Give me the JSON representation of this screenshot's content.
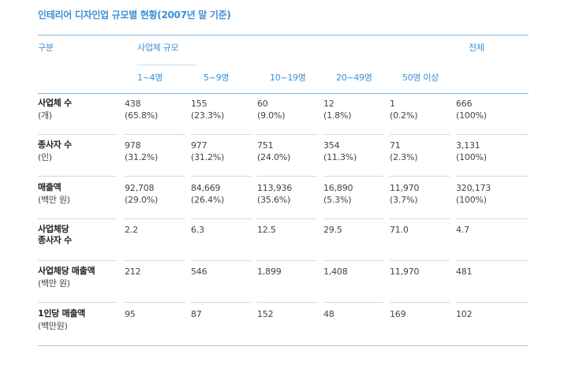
{
  "title": "인테리어 디자인업 규모별 현황(2007년 말 기준)",
  "header": {
    "category": "구분",
    "size_group": "사업체 규모",
    "total": "전체",
    "sizes": [
      "1~4명",
      "5~9명",
      "10~19명",
      "20~49명",
      "50명 이상"
    ]
  },
  "rows": [
    {
      "label": "사업체 수",
      "unit": "(개)",
      "cells": [
        {
          "value": "438",
          "pct": "(65.8%)"
        },
        {
          "value": "155",
          "pct": "(23.3%)"
        },
        {
          "value": "60",
          "pct": "(9.0%)"
        },
        {
          "value": "12",
          "pct": "(1.8%)"
        },
        {
          "value": "1",
          "pct": "(0.2%)"
        },
        {
          "value": "666",
          "pct": "(100%)"
        }
      ]
    },
    {
      "label": "종사자 수",
      "unit": "(인)",
      "cells": [
        {
          "value": "978",
          "pct": "(31.2%)"
        },
        {
          "value": "977",
          "pct": "(31.2%)"
        },
        {
          "value": "751",
          "pct": "(24.0%)"
        },
        {
          "value": "354",
          "pct": "(11.3%)"
        },
        {
          "value": "71",
          "pct": "(2.3%)"
        },
        {
          "value": "3,131",
          "pct": "(100%)"
        }
      ]
    },
    {
      "label": "매출액",
      "unit": "(백만 원)",
      "cells": [
        {
          "value": "92,708",
          "pct": "(29.0%)"
        },
        {
          "value": "84,669",
          "pct": "(26.4%)"
        },
        {
          "value": "113,936",
          "pct": "(35.6%)"
        },
        {
          "value": "16,890",
          "pct": "(5.3%)"
        },
        {
          "value": "11,970",
          "pct": "(3.7%)"
        },
        {
          "value": "320,173",
          "pct": "(100%)"
        }
      ]
    },
    {
      "label": "사업체당\n종사자 수",
      "unit": "",
      "cells": [
        {
          "value": "2.2",
          "pct": ""
        },
        {
          "value": "6.3",
          "pct": ""
        },
        {
          "value": "12.5",
          "pct": ""
        },
        {
          "value": "29.5",
          "pct": ""
        },
        {
          "value": "71.0",
          "pct": ""
        },
        {
          "value": "4.7",
          "pct": ""
        }
      ]
    },
    {
      "label": "사업체당 매출액",
      "unit": "(백만 원)",
      "cells": [
        {
          "value": "212",
          "pct": ""
        },
        {
          "value": "546",
          "pct": ""
        },
        {
          "value": "1,899",
          "pct": ""
        },
        {
          "value": "1,408",
          "pct": ""
        },
        {
          "value": "11,970",
          "pct": ""
        },
        {
          "value": "481",
          "pct": ""
        }
      ]
    },
    {
      "label": "1인당 매출액",
      "unit": "(백만원)",
      "cells": [
        {
          "value": "95",
          "pct": ""
        },
        {
          "value": "87",
          "pct": ""
        },
        {
          "value": "152",
          "pct": ""
        },
        {
          "value": "48",
          "pct": ""
        },
        {
          "value": "169",
          "pct": ""
        },
        {
          "value": "102",
          "pct": ""
        }
      ]
    }
  ]
}
